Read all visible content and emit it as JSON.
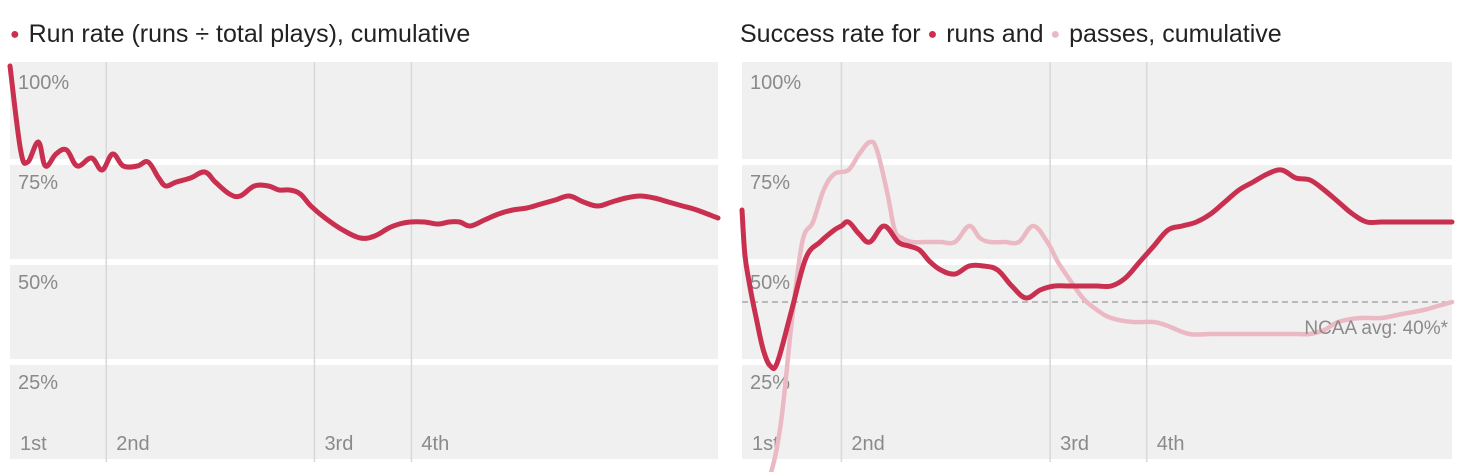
{
  "colors": {
    "runs": "#c9304f",
    "passes": "#ebb9c3",
    "band_bg": "#f0f0f0",
    "grid": "#d8d8d8",
    "text": "#222222",
    "muted": "#8a8a8a",
    "reference": "#9a9a9a"
  },
  "chart_data": [
    {
      "type": "line",
      "title_dot": "●",
      "title": "Run rate (runs ÷ total plays), cumulative",
      "ylim": [
        0,
        100
      ],
      "y_ticks": [
        25,
        50,
        75,
        100
      ],
      "y_tick_labels": [
        "25%",
        "50%",
        "75%",
        "100%"
      ],
      "quarters": [
        {
          "label": "1st",
          "start": 0
        },
        {
          "label": "2nd",
          "start": 0.136
        },
        {
          "label": "3rd",
          "start": 0.43
        },
        {
          "label": "4th",
          "start": 0.567
        }
      ],
      "series": [
        {
          "color_key": "runs",
          "x": [
            0,
            0.015,
            0.025,
            0.04,
            0.05,
            0.065,
            0.08,
            0.095,
            0.115,
            0.13,
            0.145,
            0.16,
            0.18,
            0.195,
            0.21,
            0.22,
            0.235,
            0.255,
            0.275,
            0.29,
            0.31,
            0.325,
            0.345,
            0.365,
            0.38,
            0.395,
            0.41,
            0.425,
            0.445,
            0.47,
            0.495,
            0.515,
            0.535,
            0.55,
            0.565,
            0.585,
            0.605,
            0.62,
            0.635,
            0.65,
            0.67,
            0.69,
            0.71,
            0.73,
            0.75,
            0.77,
            0.79,
            0.81,
            0.83,
            0.85,
            0.87,
            0.89,
            0.91,
            0.93,
            0.95,
            0.97,
            1.0
          ],
          "y": [
            99,
            78,
            75,
            80,
            74,
            77,
            78,
            74,
            76,
            73,
            77,
            74,
            74,
            75,
            71,
            69,
            70,
            71,
            72.5,
            70,
            67,
            66.5,
            69,
            69,
            68,
            68,
            67,
            64,
            61,
            58,
            56,
            56.5,
            58.5,
            59.5,
            60,
            60,
            59.5,
            60,
            60,
            59,
            60.5,
            62,
            63,
            63.5,
            64.5,
            65.5,
            66.5,
            65,
            64,
            65,
            66,
            66.5,
            66,
            65,
            64,
            63,
            61
          ]
        }
      ]
    },
    {
      "type": "line",
      "title_prefix": "Success rate for",
      "title_dot": "●",
      "title_mid": "runs and",
      "title_suffix": "passes, cumulative",
      "ylim": [
        0,
        100
      ],
      "y_ticks": [
        25,
        50,
        75,
        100
      ],
      "y_tick_labels": [
        "25%",
        "50%",
        "75%",
        "100%"
      ],
      "quarters": [
        {
          "label": "1st",
          "start": 0
        },
        {
          "label": "2nd",
          "start": 0.14
        },
        {
          "label": "3rd",
          "start": 0.434
        },
        {
          "label": "4th",
          "start": 0.57
        }
      ],
      "reference_line": {
        "y": 40,
        "label": "NCAA avg: 40%*"
      },
      "series": [
        {
          "color_key": "runs",
          "x": [
            0,
            0.004,
            0.01,
            0.02,
            0.03,
            0.04,
            0.05,
            0.07,
            0.09,
            0.11,
            0.13,
            0.14,
            0.15,
            0.165,
            0.18,
            0.2,
            0.22,
            0.235,
            0.25,
            0.265,
            0.28,
            0.3,
            0.32,
            0.34,
            0.36,
            0.38,
            0.4,
            0.42,
            0.44,
            0.46,
            0.48,
            0.5,
            0.52,
            0.54,
            0.56,
            0.58,
            0.6,
            0.62,
            0.64,
            0.66,
            0.68,
            0.7,
            0.72,
            0.74,
            0.76,
            0.78,
            0.8,
            0.82,
            0.84,
            0.86,
            0.88,
            0.9,
            0.92,
            0.94,
            0.96,
            0.98,
            1.0
          ],
          "y": [
            63,
            52,
            45,
            36,
            28,
            24,
            25,
            38,
            51,
            55,
            58,
            59,
            60,
            57,
            55,
            59,
            55,
            54,
            53,
            50,
            48,
            47,
            49,
            49,
            48,
            44,
            41,
            43,
            44,
            44,
            44,
            44,
            44,
            46,
            50,
            54,
            58,
            59,
            60,
            62,
            65,
            68,
            70,
            72,
            73,
            71,
            70.5,
            68,
            65,
            62,
            60,
            60,
            60,
            60,
            60,
            60,
            60
          ]
        },
        {
          "color_key": "passes",
          "x": [
            0,
            0.01,
            0.025,
            0.04,
            0.055,
            0.07,
            0.085,
            0.1,
            0.115,
            0.13,
            0.15,
            0.165,
            0.18,
            0.19,
            0.205,
            0.215,
            0.225,
            0.24,
            0.26,
            0.28,
            0.3,
            0.32,
            0.335,
            0.35,
            0.37,
            0.39,
            0.41,
            0.43,
            0.445,
            0.46,
            0.48,
            0.5,
            0.52,
            0.55,
            0.58,
            0.6,
            0.63,
            0.66,
            0.69,
            0.72,
            0.75,
            0.78,
            0.8,
            0.82,
            0.84,
            0.87,
            0.9,
            0.93,
            0.96,
            0.98,
            1.0
          ],
          "y": [
            -5,
            -6,
            -5,
            -3,
            10,
            35,
            55,
            60,
            68,
            72,
            73,
            77,
            80,
            78,
            67,
            58,
            56,
            55,
            55,
            55,
            55,
            59,
            56,
            55,
            55,
            55,
            59,
            55,
            50,
            46,
            41,
            38,
            36,
            35,
            35,
            34,
            32,
            32,
            32,
            32,
            32,
            32,
            32,
            33,
            35,
            36,
            36,
            37,
            38,
            39,
            40
          ]
        }
      ]
    }
  ]
}
